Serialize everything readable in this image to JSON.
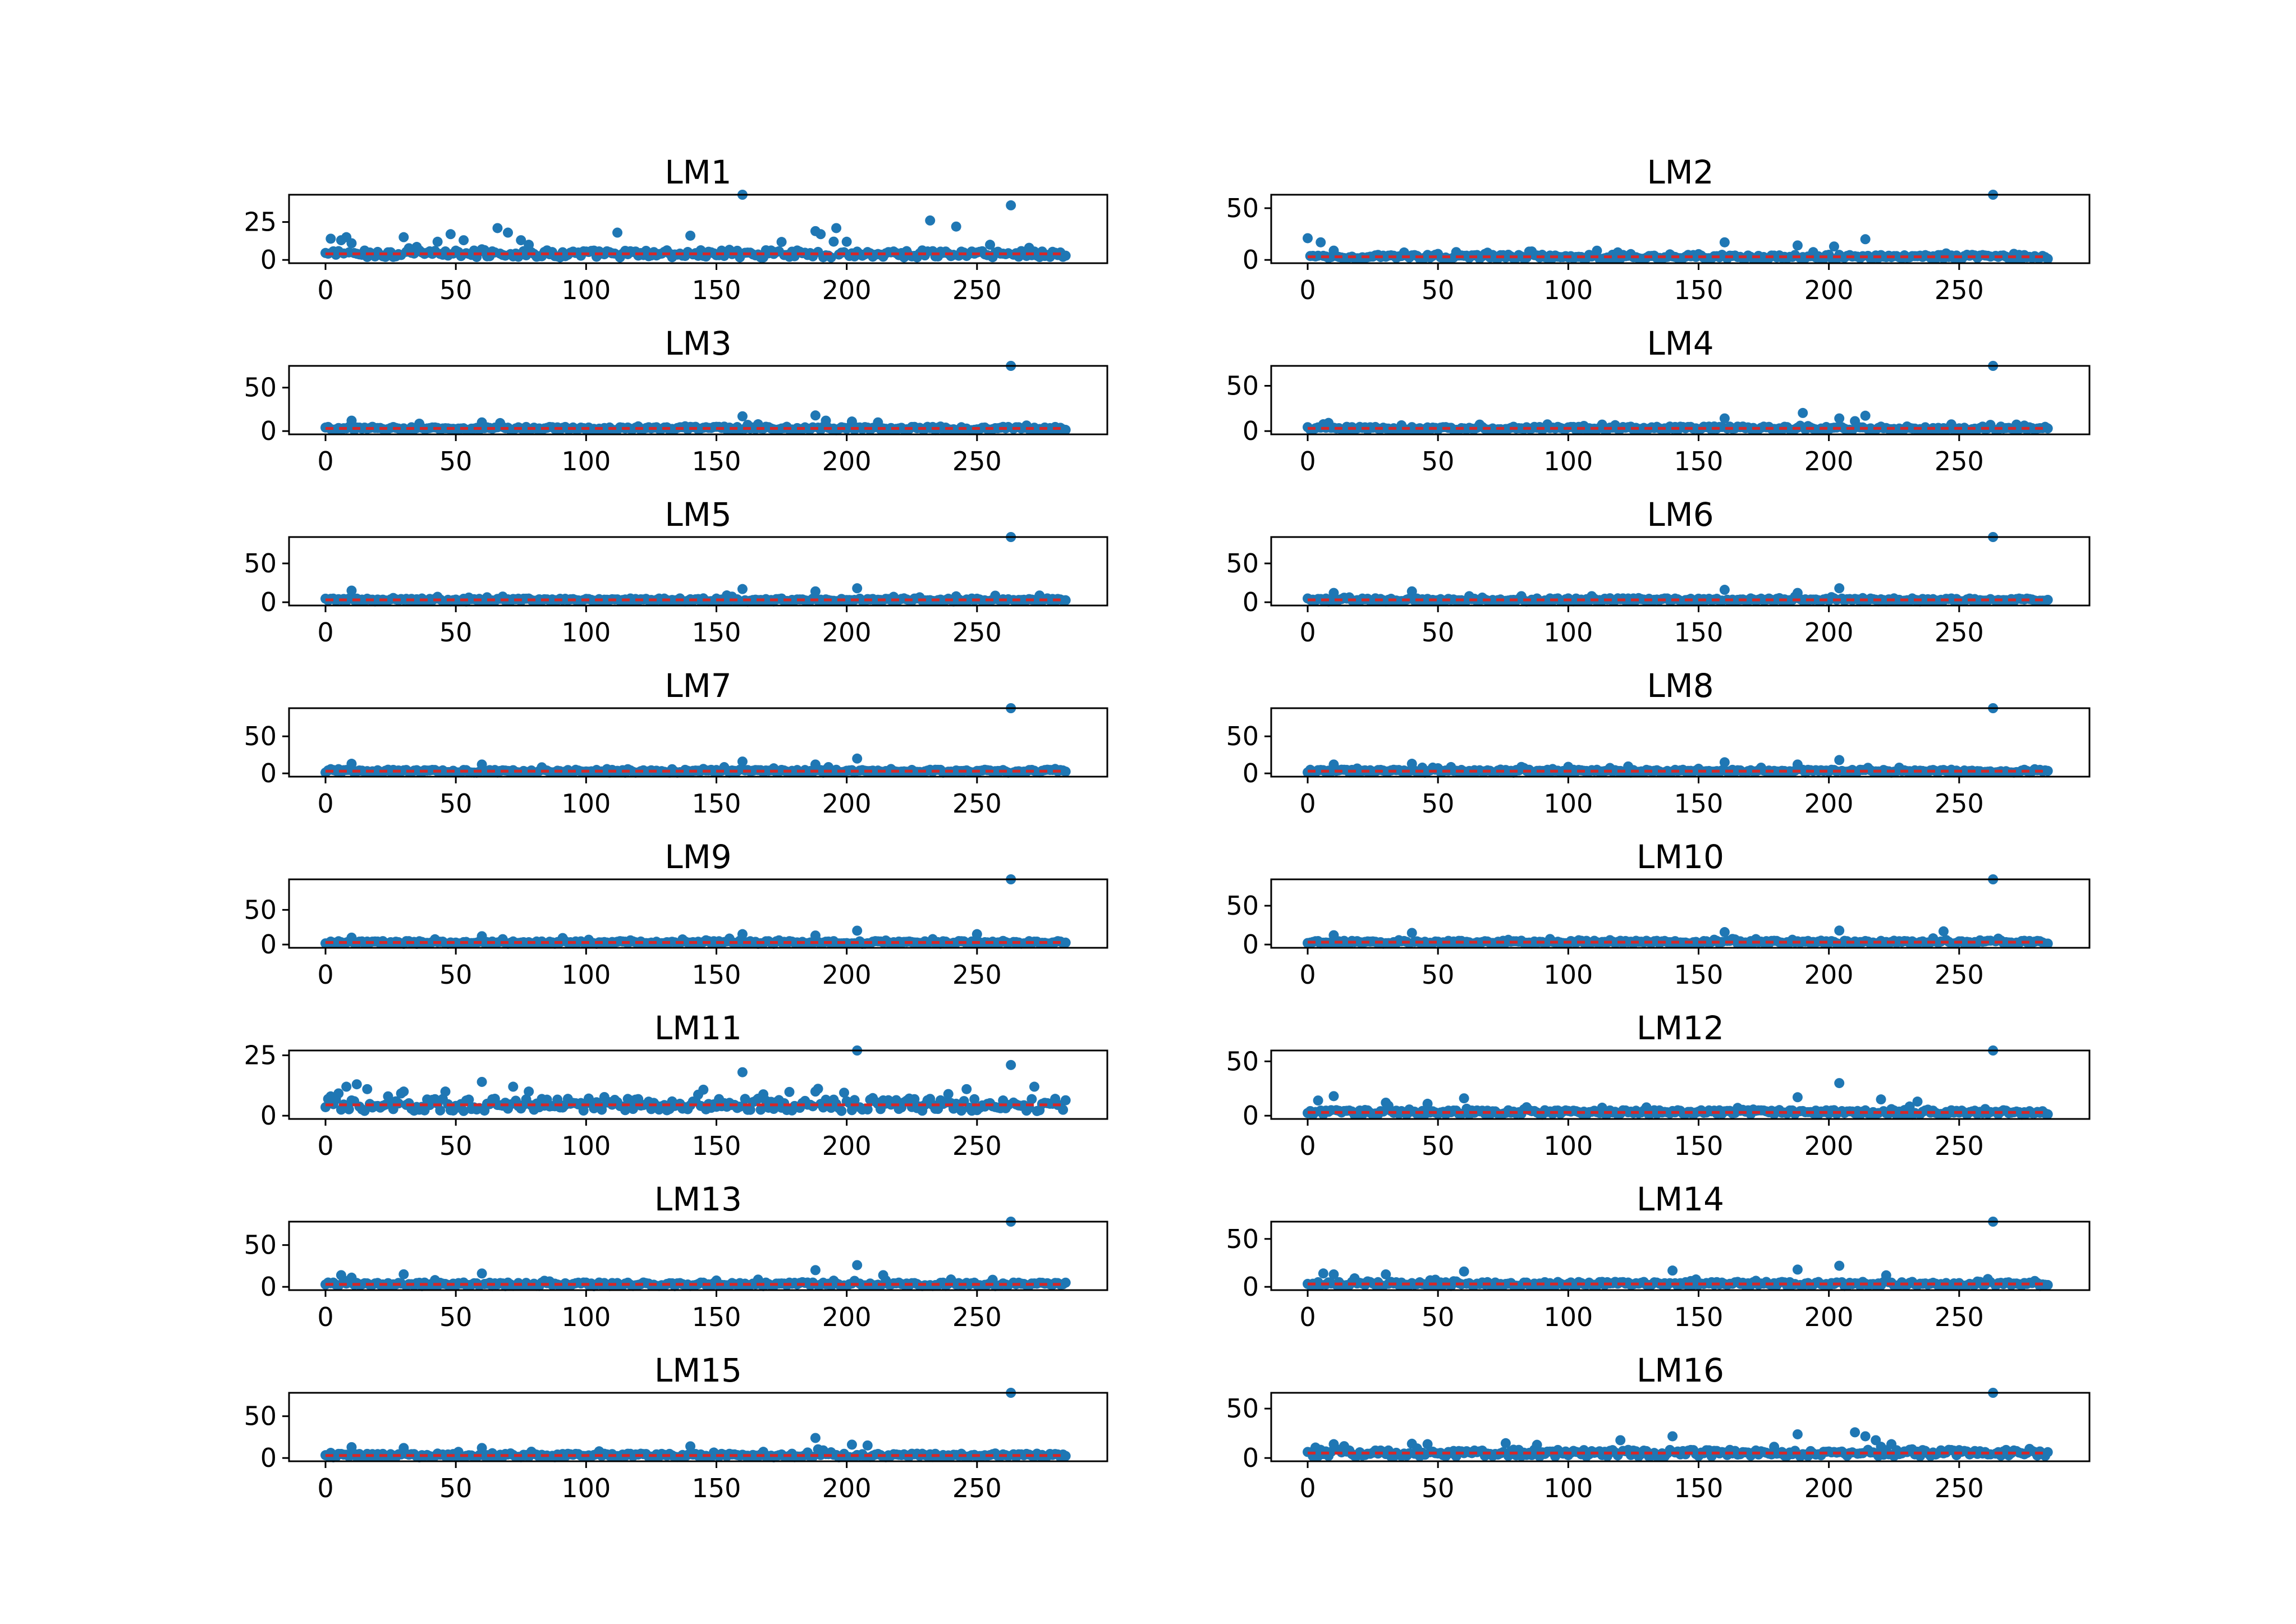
{
  "figure": {
    "series_color": "#1f77b4",
    "mean_line_color": "#d62728",
    "x_ticks": [
      0,
      50,
      100,
      150,
      200,
      250
    ],
    "x_range": [
      -14,
      300
    ]
  },
  "chart_data": [
    {
      "type": "scatter",
      "title": "LM1",
      "ylim": [
        0,
        43
      ],
      "y_ticks": [
        0,
        25
      ],
      "n": 285,
      "baseline": 4,
      "spread": 2.4,
      "mean": 4,
      "outliers": [
        [
          2,
          14
        ],
        [
          6,
          13
        ],
        [
          8,
          15
        ],
        [
          10,
          11
        ],
        [
          30,
          15
        ],
        [
          43,
          12
        ],
        [
          48,
          17
        ],
        [
          53,
          13
        ],
        [
          60,
          7
        ],
        [
          66,
          21
        ],
        [
          70,
          18
        ],
        [
          75,
          13
        ],
        [
          78,
          10
        ],
        [
          112,
          18
        ],
        [
          140,
          16
        ],
        [
          160,
          43
        ],
        [
          188,
          19
        ],
        [
          190,
          17
        ],
        [
          196,
          21
        ],
        [
          200,
          12
        ],
        [
          232,
          26
        ],
        [
          242,
          22
        ],
        [
          263,
          36
        ],
        [
          255,
          10
        ],
        [
          270,
          8
        ]
      ]
    },
    {
      "type": "scatter",
      "title": "LM2",
      "ylim": [
        0,
        63
      ],
      "y_ticks": [
        0,
        50
      ],
      "n": 285,
      "baseline": 3,
      "spread": 2.0,
      "mean": 3,
      "outliers": [
        [
          0,
          21
        ],
        [
          5,
          17
        ],
        [
          10,
          9
        ],
        [
          160,
          17
        ],
        [
          188,
          14
        ],
        [
          202,
          13
        ],
        [
          214,
          20
        ],
        [
          263,
          63
        ]
      ]
    },
    {
      "type": "scatter",
      "title": "LM3",
      "ylim": [
        0,
        75
      ],
      "y_ticks": [
        0,
        50
      ],
      "n": 285,
      "baseline": 3,
      "spread": 2.0,
      "mean": 3,
      "outliers": [
        [
          10,
          12
        ],
        [
          60,
          10
        ],
        [
          160,
          17
        ],
        [
          188,
          18
        ],
        [
          192,
          12
        ],
        [
          202,
          11
        ],
        [
          212,
          10
        ],
        [
          263,
          75
        ]
      ]
    },
    {
      "type": "scatter",
      "title": "LM4",
      "ylim": [
        0,
        72
      ],
      "y_ticks": [
        0,
        50
      ],
      "n": 285,
      "baseline": 3,
      "spread": 2.0,
      "mean": 3,
      "outliers": [
        [
          8,
          9
        ],
        [
          160,
          14
        ],
        [
          190,
          20
        ],
        [
          204,
          14
        ],
        [
          210,
          11
        ],
        [
          214,
          17
        ],
        [
          263,
          72
        ]
      ]
    },
    {
      "type": "scatter",
      "title": "LM5",
      "ylim": [
        0,
        84
      ],
      "y_ticks": [
        0,
        50
      ],
      "n": 285,
      "baseline": 3,
      "spread": 2.0,
      "mean": 3,
      "outliers": [
        [
          10,
          15
        ],
        [
          160,
          17
        ],
        [
          188,
          14
        ],
        [
          204,
          18
        ],
        [
          263,
          84
        ]
      ]
    },
    {
      "type": "scatter",
      "title": "LM6",
      "ylim": [
        0,
        84
      ],
      "y_ticks": [
        0,
        50
      ],
      "n": 285,
      "baseline": 3,
      "spread": 2.0,
      "mean": 3,
      "outliers": [
        [
          10,
          12
        ],
        [
          40,
          14
        ],
        [
          160,
          16
        ],
        [
          188,
          12
        ],
        [
          204,
          18
        ],
        [
          263,
          84
        ]
      ]
    },
    {
      "type": "scatter",
      "title": "LM7",
      "ylim": [
        0,
        88
      ],
      "y_ticks": [
        0,
        50
      ],
      "n": 285,
      "baseline": 3,
      "spread": 2.0,
      "mean": 3,
      "outliers": [
        [
          10,
          13
        ],
        [
          60,
          12
        ],
        [
          160,
          16
        ],
        [
          188,
          12
        ],
        [
          204,
          20
        ],
        [
          263,
          88
        ]
      ]
    },
    {
      "type": "scatter",
      "title": "LM8",
      "ylim": [
        0,
        88
      ],
      "y_ticks": [
        0,
        50
      ],
      "n": 285,
      "baseline": 3,
      "spread": 2.0,
      "mean": 3,
      "outliers": [
        [
          10,
          12
        ],
        [
          40,
          13
        ],
        [
          160,
          15
        ],
        [
          188,
          12
        ],
        [
          204,
          18
        ],
        [
          263,
          88
        ]
      ]
    },
    {
      "type": "scatter",
      "title": "LM9",
      "ylim": [
        0,
        94
      ],
      "y_ticks": [
        0,
        50
      ],
      "n": 285,
      "baseline": 3,
      "spread": 2.0,
      "mean": 3,
      "outliers": [
        [
          10,
          10
        ],
        [
          60,
          12
        ],
        [
          160,
          15
        ],
        [
          188,
          13
        ],
        [
          204,
          20
        ],
        [
          250,
          15
        ],
        [
          263,
          94
        ]
      ]
    },
    {
      "type": "scatter",
      "title": "LM10",
      "ylim": [
        0,
        84
      ],
      "y_ticks": [
        0,
        50
      ],
      "n": 285,
      "baseline": 3,
      "spread": 2.0,
      "mean": 3,
      "outliers": [
        [
          10,
          12
        ],
        [
          40,
          15
        ],
        [
          160,
          16
        ],
        [
          204,
          18
        ],
        [
          244,
          17
        ],
        [
          263,
          84
        ]
      ]
    },
    {
      "type": "scatter",
      "title": "LM11",
      "ylim": [
        0,
        27
      ],
      "y_ticks": [
        0,
        25
      ],
      "n": 285,
      "baseline": 4.5,
      "spread": 2.6,
      "mean": 4.5,
      "outliers": [
        [
          2,
          8
        ],
        [
          8,
          12
        ],
        [
          12,
          13
        ],
        [
          16,
          11
        ],
        [
          30,
          10
        ],
        [
          46,
          10
        ],
        [
          60,
          14
        ],
        [
          72,
          12
        ],
        [
          78,
          10
        ],
        [
          160,
          18
        ],
        [
          188,
          10
        ],
        [
          204,
          27
        ],
        [
          246,
          11
        ],
        [
          263,
          21
        ],
        [
          272,
          12
        ]
      ]
    },
    {
      "type": "scatter",
      "title": "LM12",
      "ylim": [
        0,
        60
      ],
      "y_ticks": [
        0,
        50
      ],
      "n": 285,
      "baseline": 3,
      "spread": 2.2,
      "mean": 3,
      "outliers": [
        [
          4,
          14
        ],
        [
          10,
          18
        ],
        [
          30,
          12
        ],
        [
          46,
          11
        ],
        [
          60,
          16
        ],
        [
          188,
          17
        ],
        [
          204,
          30
        ],
        [
          220,
          15
        ],
        [
          234,
          13
        ],
        [
          263,
          60
        ]
      ]
    },
    {
      "type": "scatter",
      "title": "LM13",
      "ylim": [
        0,
        78
      ],
      "y_ticks": [
        0,
        50
      ],
      "n": 285,
      "baseline": 3,
      "spread": 2.2,
      "mean": 3,
      "outliers": [
        [
          6,
          14
        ],
        [
          10,
          11
        ],
        [
          30,
          15
        ],
        [
          60,
          16
        ],
        [
          188,
          20
        ],
        [
          204,
          26
        ],
        [
          214,
          14
        ],
        [
          263,
          78
        ]
      ]
    },
    {
      "type": "scatter",
      "title": "LM14",
      "ylim": [
        0,
        68
      ],
      "y_ticks": [
        0,
        50
      ],
      "n": 285,
      "baseline": 3,
      "spread": 2.2,
      "mean": 3,
      "outliers": [
        [
          6,
          14
        ],
        [
          10,
          13
        ],
        [
          30,
          13
        ],
        [
          60,
          16
        ],
        [
          140,
          17
        ],
        [
          188,
          18
        ],
        [
          204,
          22
        ],
        [
          222,
          12
        ],
        [
          263,
          68
        ]
      ]
    },
    {
      "type": "scatter",
      "title": "LM15",
      "ylim": [
        0,
        78
      ],
      "y_ticks": [
        0,
        50
      ],
      "n": 285,
      "baseline": 3,
      "spread": 2.2,
      "mean": 3,
      "outliers": [
        [
          10,
          13
        ],
        [
          30,
          12
        ],
        [
          60,
          12
        ],
        [
          140,
          14
        ],
        [
          188,
          24
        ],
        [
          202,
          16
        ],
        [
          208,
          15
        ],
        [
          263,
          78
        ]
      ]
    },
    {
      "type": "scatter",
      "title": "LM16",
      "ylim": [
        0,
        66
      ],
      "y_ticks": [
        0,
        50
      ],
      "n": 285,
      "baseline": 5,
      "spread": 3.5,
      "mean": 5,
      "outliers": [
        [
          10,
          14
        ],
        [
          14,
          12
        ],
        [
          46,
          14
        ],
        [
          76,
          15
        ],
        [
          120,
          18
        ],
        [
          140,
          22
        ],
        [
          188,
          24
        ],
        [
          210,
          26
        ],
        [
          214,
          22
        ],
        [
          218,
          18
        ],
        [
          224,
          14
        ],
        [
          263,
          66
        ]
      ]
    }
  ]
}
